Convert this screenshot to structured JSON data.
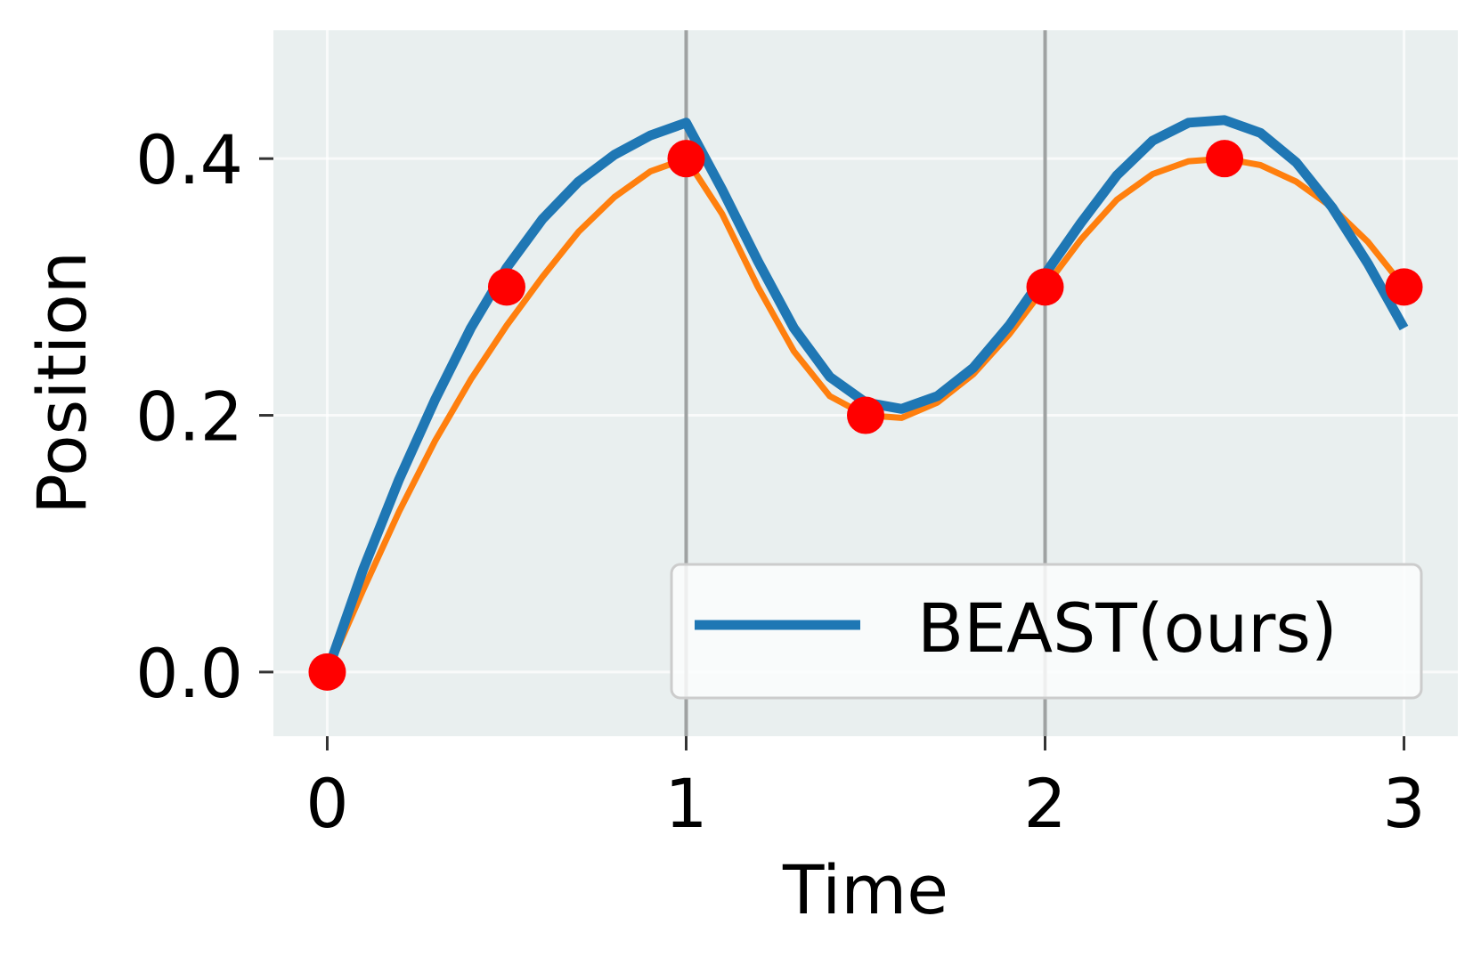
{
  "chart_data": {
    "type": "line",
    "xlabel": "Time",
    "ylabel": "Position",
    "xlim": [
      -0.15,
      3.15
    ],
    "ylim": [
      -0.05,
      0.5
    ],
    "x_ticks": [
      0,
      1,
      2,
      3
    ],
    "x_tick_labels": [
      "0",
      "1",
      "2",
      "3"
    ],
    "y_ticks": [
      0.0,
      0.2,
      0.4
    ],
    "y_tick_labels": [
      "0.0",
      "0.2",
      "0.4"
    ],
    "grid": true,
    "legend_position": "bottom-right",
    "vertical_lines_x": [
      1,
      2
    ],
    "series": [
      {
        "name": "BEAST(ours)",
        "color": "#1f77b4",
        "points": [
          [
            0.0,
            0.0
          ],
          [
            0.1,
            0.08
          ],
          [
            0.2,
            0.15
          ],
          [
            0.3,
            0.212
          ],
          [
            0.4,
            0.268
          ],
          [
            0.5,
            0.315
          ],
          [
            0.6,
            0.353
          ],
          [
            0.7,
            0.382
          ],
          [
            0.8,
            0.403
          ],
          [
            0.9,
            0.418
          ],
          [
            1.0,
            0.428
          ],
          [
            1.1,
            0.376
          ],
          [
            1.2,
            0.32
          ],
          [
            1.3,
            0.268
          ],
          [
            1.4,
            0.23
          ],
          [
            1.5,
            0.21
          ],
          [
            1.6,
            0.205
          ],
          [
            1.7,
            0.215
          ],
          [
            1.8,
            0.237
          ],
          [
            1.9,
            0.27
          ],
          [
            2.0,
            0.31
          ],
          [
            2.1,
            0.35
          ],
          [
            2.2,
            0.387
          ],
          [
            2.3,
            0.414
          ],
          [
            2.4,
            0.428
          ],
          [
            2.5,
            0.43
          ],
          [
            2.6,
            0.42
          ],
          [
            2.7,
            0.397
          ],
          [
            2.8,
            0.362
          ],
          [
            2.9,
            0.318
          ],
          [
            3.0,
            0.268
          ]
        ]
      },
      {
        "color": "#ff7f0e",
        "points": [
          [
            0.0,
            0.0
          ],
          [
            0.1,
            0.064
          ],
          [
            0.2,
            0.125
          ],
          [
            0.3,
            0.18
          ],
          [
            0.4,
            0.228
          ],
          [
            0.5,
            0.27
          ],
          [
            0.6,
            0.308
          ],
          [
            0.7,
            0.343
          ],
          [
            0.8,
            0.37
          ],
          [
            0.9,
            0.39
          ],
          [
            1.0,
            0.4
          ],
          [
            1.1,
            0.357
          ],
          [
            1.2,
            0.3
          ],
          [
            1.3,
            0.25
          ],
          [
            1.4,
            0.215
          ],
          [
            1.5,
            0.2
          ],
          [
            1.6,
            0.198
          ],
          [
            1.7,
            0.21
          ],
          [
            1.8,
            0.232
          ],
          [
            1.9,
            0.263
          ],
          [
            2.0,
            0.3
          ],
          [
            2.1,
            0.337
          ],
          [
            2.2,
            0.368
          ],
          [
            2.3,
            0.388
          ],
          [
            2.4,
            0.398
          ],
          [
            2.5,
            0.4
          ],
          [
            2.6,
            0.395
          ],
          [
            2.7,
            0.382
          ],
          [
            2.8,
            0.362
          ],
          [
            2.9,
            0.335
          ],
          [
            3.0,
            0.3
          ]
        ]
      }
    ],
    "markers": {
      "color": "#ff0000",
      "points": [
        [
          0,
          0.0
        ],
        [
          0.5,
          0.3
        ],
        [
          1.0,
          0.4
        ],
        [
          1.5,
          0.2
        ],
        [
          2.0,
          0.3
        ],
        [
          2.5,
          0.4
        ],
        [
          3.0,
          0.3
        ]
      ]
    }
  }
}
